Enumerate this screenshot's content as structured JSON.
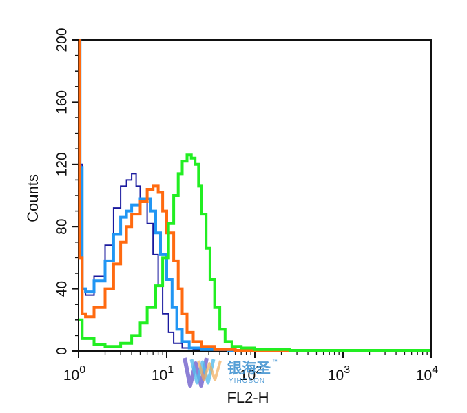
{
  "chart_data": {
    "type": "line",
    "title": "",
    "xlabel": "FL2-H",
    "ylabel": "Counts",
    "x_scale": "log",
    "xlim": [
      1,
      10000
    ],
    "ylim": [
      0,
      200
    ],
    "x_ticks": [
      {
        "value": 1,
        "base": "10",
        "exp": "0"
      },
      {
        "value": 10,
        "base": "10",
        "exp": "1"
      },
      {
        "value": 100,
        "base": "10",
        "exp": "2"
      },
      {
        "value": 1000,
        "base": "10",
        "exp": "3"
      },
      {
        "value": 10000,
        "base": "10",
        "exp": "4"
      }
    ],
    "y_ticks": [
      "0",
      "40",
      "80",
      "120",
      "160",
      "200"
    ],
    "grid": false,
    "legend": "none",
    "series": [
      {
        "color": "#1a1a9e",
        "points": [
          [
            1.0,
            200
          ],
          [
            1.03,
            120
          ],
          [
            1.1,
            40
          ],
          [
            1.2,
            36
          ],
          [
            1.5,
            48
          ],
          [
            2.0,
            68
          ],
          [
            2.5,
            92
          ],
          [
            3.0,
            106
          ],
          [
            3.5,
            110
          ],
          [
            4.0,
            114
          ],
          [
            4.5,
            106
          ],
          [
            5.0,
            98
          ],
          [
            6.0,
            82
          ],
          [
            7.0,
            62
          ],
          [
            8.0,
            42
          ],
          [
            9.0,
            24
          ],
          [
            10.5,
            12
          ],
          [
            12.0,
            5
          ],
          [
            15.0,
            2
          ],
          [
            20.0,
            1
          ],
          [
            40.0,
            0
          ],
          [
            10000,
            0
          ]
        ]
      },
      {
        "color": "#2196f3",
        "points": [
          [
            1.0,
            200
          ],
          [
            1.04,
            118
          ],
          [
            1.1,
            40
          ],
          [
            1.2,
            38
          ],
          [
            1.5,
            45
          ],
          [
            2.0,
            58
          ],
          [
            2.5,
            75
          ],
          [
            3.0,
            86
          ],
          [
            3.5,
            90
          ],
          [
            4.0,
            94
          ],
          [
            5.0,
            98
          ],
          [
            5.5,
            98
          ],
          [
            6.5,
            90
          ],
          [
            7.5,
            76
          ],
          [
            8.5,
            62
          ],
          [
            10.0,
            46
          ],
          [
            11.5,
            28
          ],
          [
            13.0,
            14
          ],
          [
            15.0,
            6
          ],
          [
            18.0,
            2
          ],
          [
            25.0,
            1
          ],
          [
            50.0,
            0
          ],
          [
            10000,
            0
          ]
        ]
      },
      {
        "color": "#ff6a10",
        "points": [
          [
            1.0,
            200
          ],
          [
            1.03,
            60
          ],
          [
            1.1,
            24
          ],
          [
            1.2,
            22
          ],
          [
            1.5,
            28
          ],
          [
            2.0,
            40
          ],
          [
            2.5,
            56
          ],
          [
            3.0,
            70
          ],
          [
            3.5,
            80
          ],
          [
            4.0,
            88
          ],
          [
            5.0,
            96
          ],
          [
            6.0,
            104
          ],
          [
            7.0,
            106
          ],
          [
            8.0,
            102
          ],
          [
            9.0,
            90
          ],
          [
            10.0,
            76
          ],
          [
            12.0,
            58
          ],
          [
            13.5,
            40
          ],
          [
            15.0,
            24
          ],
          [
            17.0,
            12
          ],
          [
            20.0,
            6
          ],
          [
            25.0,
            3
          ],
          [
            35.0,
            1
          ],
          [
            60.0,
            0
          ],
          [
            10000,
            0
          ]
        ]
      },
      {
        "color": "#22ee22",
        "points": [
          [
            1.0,
            20
          ],
          [
            1.1,
            8
          ],
          [
            1.5,
            4
          ],
          [
            2.0,
            3
          ],
          [
            3.0,
            5
          ],
          [
            4.0,
            10
          ],
          [
            5.0,
            18
          ],
          [
            6.0,
            28
          ],
          [
            7.5,
            42
          ],
          [
            9.0,
            60
          ],
          [
            10.5,
            82
          ],
          [
            12.0,
            100
          ],
          [
            13.5,
            114
          ],
          [
            15.0,
            122
          ],
          [
            17.0,
            126
          ],
          [
            19.0,
            124
          ],
          [
            21.0,
            120
          ],
          [
            23.0,
            106
          ],
          [
            25.0,
            88
          ],
          [
            28.0,
            66
          ],
          [
            31.0,
            46
          ],
          [
            35.0,
            28
          ],
          [
            40.0,
            14
          ],
          [
            46.0,
            6
          ],
          [
            55.0,
            3
          ],
          [
            70.0,
            2
          ],
          [
            100.0,
            1
          ],
          [
            150.0,
            1
          ],
          [
            250.0,
            0
          ],
          [
            10000,
            0
          ]
        ]
      }
    ],
    "watermark": {
      "cn_text": "银海圣",
      "en_text": "YIHOSON",
      "tm": "™"
    }
  }
}
